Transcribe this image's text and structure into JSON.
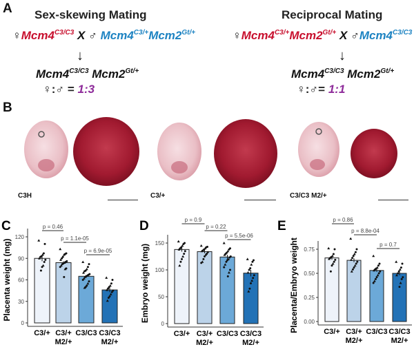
{
  "panel_a": {
    "label": "A",
    "left": {
      "title": "Sex-skewing Mating",
      "female_symbol": "♀",
      "cross": "X",
      "male_symbol": "♂",
      "female_genotype": [
        {
          "gene": "Mcm4",
          "allele": "C3/C3"
        }
      ],
      "male_genotype": [
        {
          "gene": "Mcm4",
          "allele": "C3/+"
        },
        {
          "gene": "Mcm2",
          "allele": "Gt/+"
        }
      ],
      "offspring": [
        {
          "gene": "Mcm4",
          "allele": "C3/C3"
        },
        {
          "gene": "Mcm2",
          "allele": "Gt/+"
        }
      ],
      "ratio_label": "♀:♂ =",
      "ratio": "1:3"
    },
    "right": {
      "title": "Reciprocal Mating",
      "female_symbol": "♀",
      "cross": "X",
      "male_symbol": "♂",
      "female_genotype": [
        {
          "gene": "Mcm4",
          "allele": "C3/+"
        },
        {
          "gene": "Mcm2",
          "allele": "Gt/+"
        }
      ],
      "male_genotype": [
        {
          "gene": "Mcm4",
          "allele": "C3/C3"
        }
      ],
      "offspring": [
        {
          "gene": "Mcm4",
          "allele": "C3/C3"
        },
        {
          "gene": "Mcm2",
          "allele": "Gt/+"
        }
      ],
      "ratio_label": "♀:♂=",
      "ratio": "1:1"
    },
    "colors": {
      "female": "#c8102e",
      "male": "#1d83c2",
      "ratio": "#8e2b9a"
    }
  },
  "panel_b": {
    "label": "B",
    "photos": [
      {
        "label": "C3H"
      },
      {
        "label": "C3/+"
      },
      {
        "label": "C3/C3 M2/+"
      }
    ]
  },
  "chart_data": [
    {
      "panel": "C",
      "type": "bar",
      "ylabel": "Placenta weight (mg)",
      "categories": [
        "C3/+",
        "C3/+ M2/+",
        "C3/C3",
        "C3/C3 M2/+"
      ],
      "ylim": [
        0,
        120
      ],
      "yticks": [
        0,
        30,
        60,
        90,
        120
      ],
      "values": [
        90,
        84,
        65,
        46
      ],
      "se": [
        4,
        2,
        2,
        3
      ],
      "points": [
        [
          115,
          110,
          97,
          95,
          93,
          92,
          90,
          88,
          85,
          80,
          78,
          73
        ],
        [
          103,
          97,
          96,
          95,
          92,
          90,
          88,
          86,
          85,
          84,
          83,
          82,
          80,
          78,
          76,
          75,
          64
        ],
        [
          85,
          82,
          78,
          75,
          73,
          72,
          70,
          68,
          67,
          66,
          65,
          64,
          62,
          60,
          58,
          55,
          52,
          50,
          49
        ],
        [
          63,
          60,
          55,
          52,
          50,
          48,
          46,
          45,
          43,
          40,
          37,
          35,
          31
        ]
      ],
      "comparisons": [
        {
          "groups": [
            0,
            1
          ],
          "label": "p = 0.46"
        },
        {
          "groups": [
            1,
            2
          ],
          "label": "p = 1.1e-05"
        },
        {
          "groups": [
            2,
            3
          ],
          "label": "p = 6.9e-05"
        }
      ],
      "bar_colors": [
        "#eef3fa",
        "#bcd3e9",
        "#6ca9d8",
        "#2372b6"
      ]
    },
    {
      "panel": "D",
      "type": "bar",
      "ylabel": "Embryo weight (mg)",
      "categories": [
        "C3/+",
        "C3/+ M2/+",
        "C3/C3",
        "C3/C3 M2/+"
      ],
      "ylim": [
        0,
        150
      ],
      "yticks": [
        0,
        50,
        100,
        150
      ],
      "values": [
        138,
        134,
        124,
        94
      ],
      "se": [
        4,
        3,
        4,
        6
      ],
      "points": [
        [
          153,
          150,
          148,
          145,
          142,
          140,
          138,
          135,
          130,
          125,
          120,
          115,
          108
        ],
        [
          145,
          143,
          142,
          140,
          138,
          136,
          135,
          133,
          130,
          128,
          125,
          120,
          115,
          113
        ],
        [
          150,
          140,
          138,
          135,
          132,
          130,
          128,
          125,
          123,
          120,
          118,
          115,
          110,
          105,
          100,
          95,
          88
        ],
        [
          120,
          118,
          115,
          110,
          103,
          100,
          95,
          90,
          85,
          80,
          75,
          65,
          60
        ]
      ],
      "comparisons": [
        {
          "groups": [
            0,
            1
          ],
          "label": "p = 0.9"
        },
        {
          "groups": [
            1,
            2
          ],
          "label": "p = 0.22"
        },
        {
          "groups": [
            2,
            3
          ],
          "label": "p = 5.5e-06"
        }
      ],
      "bar_colors": [
        "#eef3fa",
        "#bcd3e9",
        "#6ca9d8",
        "#2372b6"
      ]
    },
    {
      "panel": "E",
      "type": "bar",
      "ylabel": "Placenta/Embryo weight",
      "categories": [
        "C3/+",
        "C3/+ M2/+",
        "C3/C3",
        "C3/C3 M2/+"
      ],
      "ylim": [
        0,
        0.85
      ],
      "yticks": [
        "0.00",
        "0.25",
        "0.50",
        "0.75"
      ],
      "values": [
        0.66,
        0.635,
        0.53,
        0.5
      ],
      "se": [
        0.02,
        0.02,
        0.015,
        0.02
      ],
      "points": [
        [
          0.76,
          0.75,
          0.7,
          0.68,
          0.67,
          0.66,
          0.65,
          0.64,
          0.62,
          0.6,
          0.58,
          0.52
        ],
        [
          0.86,
          0.75,
          0.72,
          0.7,
          0.68,
          0.66,
          0.64,
          0.62,
          0.6,
          0.58,
          0.56,
          0.54,
          0.52
        ],
        [
          0.68,
          0.6,
          0.58,
          0.56,
          0.55,
          0.54,
          0.53,
          0.52,
          0.5,
          0.48,
          0.46,
          0.44,
          0.42,
          0.4
        ],
        [
          0.62,
          0.6,
          0.56,
          0.54,
          0.52,
          0.5,
          0.48,
          0.46,
          0.44,
          0.4,
          0.36
        ]
      ],
      "comparisons": [
        {
          "groups": [
            0,
            1
          ],
          "label": "p = 0.86"
        },
        {
          "groups": [
            1,
            2
          ],
          "label": "p = 8.8e-04"
        },
        {
          "groups": [
            2,
            3
          ],
          "label": "p = 0.7"
        }
      ],
      "bar_colors": [
        "#eef3fa",
        "#bcd3e9",
        "#6ca9d8",
        "#2372b6"
      ]
    }
  ]
}
